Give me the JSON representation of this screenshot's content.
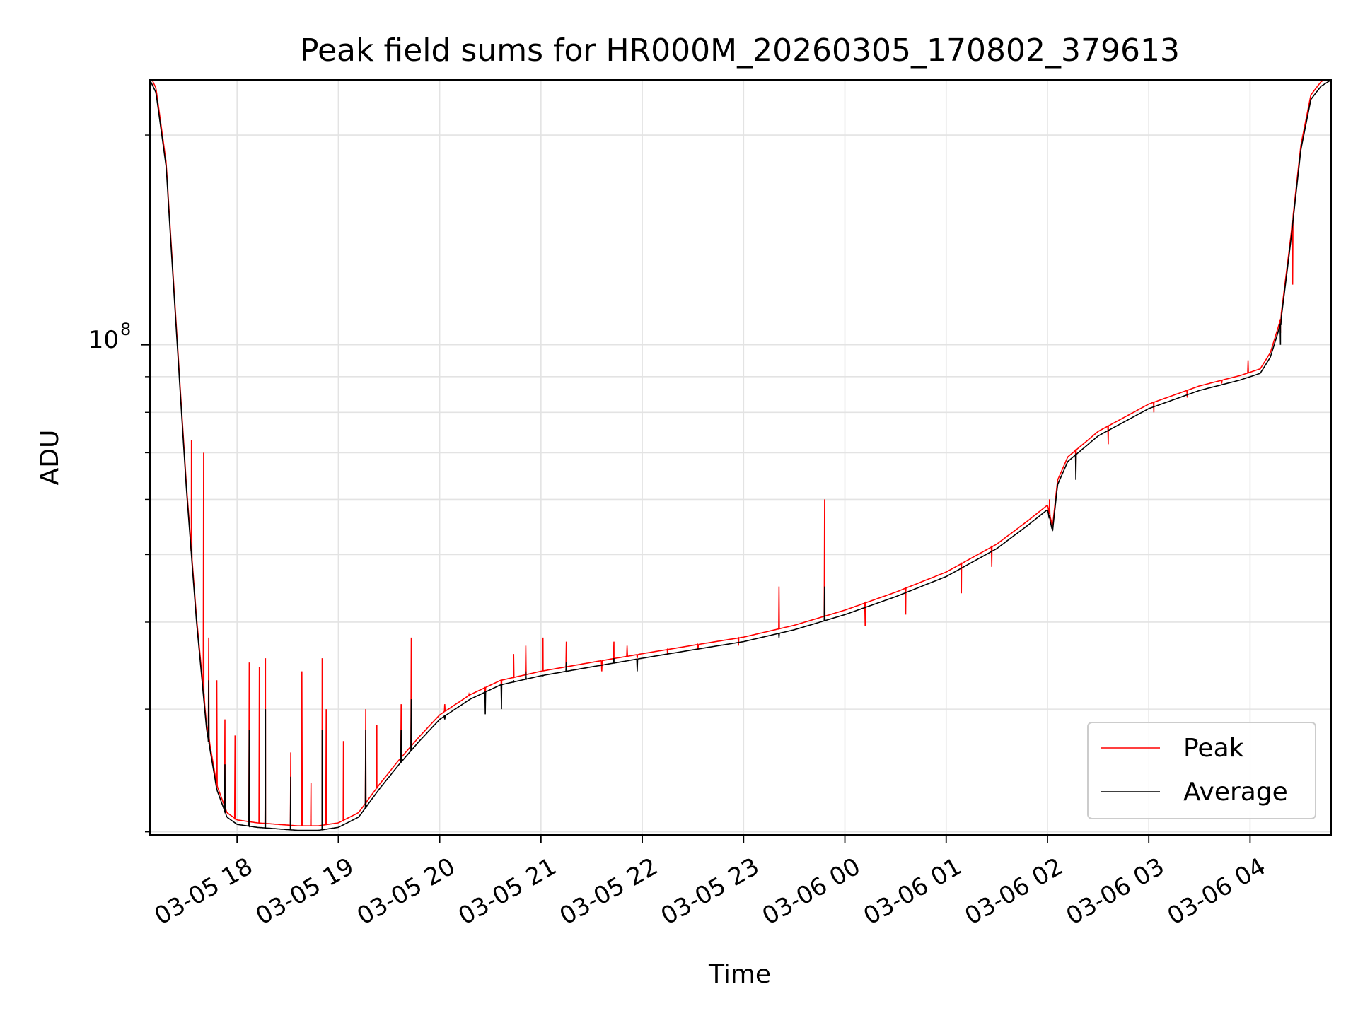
{
  "chart_data": {
    "type": "line",
    "title": "Peak field sums for HR000M_20260305_170802_379613",
    "xlabel": "Time",
    "ylabel": "ADU",
    "y_scale": "log",
    "y_tick_label": "10",
    "y_tick_exponent": "8",
    "y_major_tick_value": 100000000,
    "y_minor_tick_values": [
      20000000,
      30000000,
      40000000,
      50000000,
      60000000,
      70000000,
      80000000,
      90000000,
      200000000
    ],
    "ylim": [
      19800000,
      240000000
    ],
    "x_units": "hours since 2026-03-05 00:00",
    "xlim": [
      17.14,
      28.8
    ],
    "x_ticks": [
      {
        "value": 18,
        "label": "03-05 18"
      },
      {
        "value": 19,
        "label": "03-05 19"
      },
      {
        "value": 20,
        "label": "03-05 20"
      },
      {
        "value": 21,
        "label": "03-05 21"
      },
      {
        "value": 22,
        "label": "03-05 22"
      },
      {
        "value": 23,
        "label": "03-05 23"
      },
      {
        "value": 24,
        "label": "03-06 00"
      },
      {
        "value": 25,
        "label": "03-06 01"
      },
      {
        "value": 26,
        "label": "03-06 02"
      },
      {
        "value": 27,
        "label": "03-06 03"
      },
      {
        "value": 28,
        "label": "03-06 04"
      }
    ],
    "grid": true,
    "legend_position": "lower-right",
    "series": [
      {
        "name": "Peak",
        "color": "#ff0000"
      },
      {
        "name": "Average",
        "color": "#000000"
      }
    ],
    "baseline": {
      "x": [
        17.14,
        17.2,
        17.3,
        17.4,
        17.5,
        17.6,
        17.7,
        17.8,
        17.9,
        18.0,
        18.2,
        18.4,
        18.6,
        18.8,
        19.0,
        19.2,
        19.4,
        19.6,
        19.8,
        20.0,
        20.3,
        20.6,
        21.0,
        21.5,
        22.0,
        22.5,
        23.0,
        23.5,
        24.0,
        24.5,
        25.0,
        25.5,
        25.8,
        26.0,
        26.05,
        26.1,
        26.2,
        26.5,
        27.0,
        27.5,
        27.9,
        28.1,
        28.2,
        28.3,
        28.4,
        28.5,
        28.6,
        28.7,
        28.8
      ],
      "avg": [
        240000000,
        230000000,
        180000000,
        105000000,
        62000000,
        40000000,
        28000000,
        23000000,
        21000000,
        20500000,
        20300000,
        20200000,
        20100000,
        20100000,
        20300000,
        21000000,
        23000000,
        25000000,
        27000000,
        29000000,
        31000000,
        32500000,
        33500000,
        34500000,
        35500000,
        36500000,
        37500000,
        39000000,
        41000000,
        43500000,
        46500000,
        51000000,
        55000000,
        58000000,
        54000000,
        63000000,
        68000000,
        74000000,
        81000000,
        86000000,
        89000000,
        91000000,
        96000000,
        107000000,
        140000000,
        190000000,
        225000000,
        235000000,
        240000000
      ],
      "peak_offset_ratio": 1.015
    },
    "spikes_peak": [
      [
        17.55,
        73000000
      ],
      [
        17.67,
        70000000
      ],
      [
        17.72,
        38000000
      ],
      [
        17.8,
        33000000
      ],
      [
        17.88,
        29000000
      ],
      [
        17.98,
        27500000
      ],
      [
        18.12,
        35000000
      ],
      [
        18.22,
        34500000
      ],
      [
        18.28,
        35500000
      ],
      [
        18.53,
        26000000
      ],
      [
        18.64,
        34000000
      ],
      [
        18.73,
        23500000
      ],
      [
        18.84,
        35500000
      ],
      [
        18.88,
        30000000
      ],
      [
        19.05,
        27000000
      ],
      [
        19.27,
        30000000
      ],
      [
        19.38,
        28500000
      ],
      [
        19.62,
        30500000
      ],
      [
        19.72,
        38000000
      ],
      [
        20.05,
        30500000
      ],
      [
        20.29,
        31500000
      ],
      [
        20.45,
        31000000
      ],
      [
        20.61,
        31500000
      ],
      [
        20.73,
        36000000
      ],
      [
        20.85,
        37000000
      ],
      [
        21.02,
        38000000
      ],
      [
        21.25,
        37500000
      ],
      [
        21.6,
        34000000
      ],
      [
        21.72,
        37500000
      ],
      [
        21.85,
        37000000
      ],
      [
        21.95,
        35500000
      ],
      [
        22.25,
        36000000
      ],
      [
        22.55,
        36500000
      ],
      [
        22.95,
        37000000
      ],
      [
        23.35,
        45000000
      ],
      [
        23.8,
        60000000
      ],
      [
        24.2,
        39500000
      ],
      [
        24.6,
        41000000
      ],
      [
        25.15,
        44000000
      ],
      [
        25.45,
        48000000
      ],
      [
        26.02,
        60000000
      ],
      [
        26.28,
        66000000
      ],
      [
        26.6,
        72000000
      ],
      [
        27.05,
        80000000
      ],
      [
        27.38,
        84000000
      ],
      [
        27.72,
        88000000
      ],
      [
        27.98,
        95000000
      ],
      [
        28.3,
        104000000
      ],
      [
        28.42,
        122000000
      ]
    ],
    "spikes_avg": [
      [
        17.72,
        33000000
      ],
      [
        17.88,
        25000000
      ],
      [
        18.12,
        28000000
      ],
      [
        18.28,
        30000000
      ],
      [
        18.53,
        24000000
      ],
      [
        18.84,
        28000000
      ],
      [
        19.27,
        28000000
      ],
      [
        19.62,
        28000000
      ],
      [
        19.72,
        31000000
      ],
      [
        20.05,
        29000000
      ],
      [
        20.45,
        29500000
      ],
      [
        20.61,
        30000000
      ],
      [
        20.73,
        33000000
      ],
      [
        20.85,
        34000000
      ],
      [
        21.02,
        33500000
      ],
      [
        21.25,
        35000000
      ],
      [
        21.72,
        35500000
      ],
      [
        21.95,
        34000000
      ],
      [
        23.35,
        38000000
      ],
      [
        23.8,
        45000000
      ],
      [
        26.02,
        57000000
      ],
      [
        26.28,
        64000000
      ],
      [
        28.3,
        100000000
      ]
    ]
  }
}
